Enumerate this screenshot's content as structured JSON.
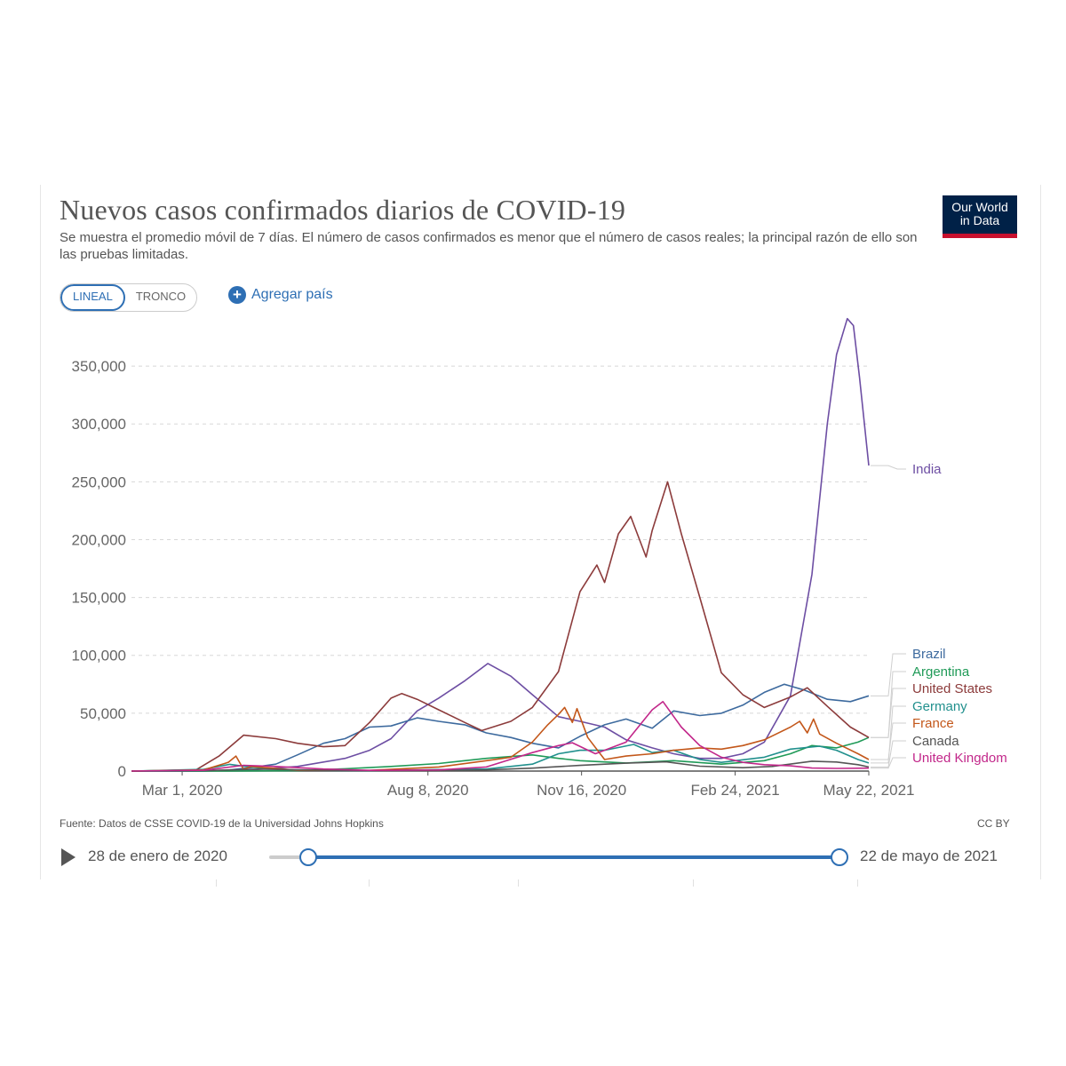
{
  "header": {
    "title": "Nuevos casos confirmados diarios de COVID-19",
    "subtitle": "Se muestra el promedio móvil de 7 días. El número de casos confirmados es menor que el número de casos reales; la principal razón de ello son las pruebas limitadas.",
    "logo_line1": "Our World",
    "logo_line2": "in Data"
  },
  "controls": {
    "scale_linear": "LINEAL",
    "scale_log": "TRONCO",
    "add_country": "Agregar país"
  },
  "footer": {
    "source": "Fuente: Datos de CSSE COVID-19 de la Universidad Johns Hopkins",
    "license": "CC BY"
  },
  "timeline": {
    "start_label": "28 de enero de 2020",
    "end_label": "22 de mayo de 2021"
  },
  "colors": {
    "India": "#6d4ea3",
    "Brazil": "#3d6a9e",
    "Argentina": "#1f9a57",
    "United States": "#8c3b3b",
    "Germany": "#21908d",
    "France": "#c3571a",
    "Canada": "#555555",
    "United Kingdom": "#c2278a",
    "accent": "#2e6fb4"
  },
  "chart_data": {
    "type": "line",
    "title": "Nuevos casos confirmados diarios de COVID-19",
    "xlabel": "",
    "ylabel": "",
    "x_ticks": [
      "Mar 1, 2020",
      "Aug 8, 2020",
      "Nov 16, 2020",
      "Feb 24, 2021",
      "May 22, 2021"
    ],
    "y_ticks": [
      "0",
      "50,000",
      "100,000",
      "150,000",
      "200,000",
      "250,000",
      "300,000",
      "350,000"
    ],
    "ylim": [
      0,
      390000
    ],
    "xlim": [
      "2020-01-28",
      "2021-05-22"
    ],
    "grid": true,
    "legend": "right, labels at line ends",
    "series": [
      {
        "name": "India",
        "points": [
          [
            "2020-01-28",
            0
          ],
          [
            "2020-03-15",
            100
          ],
          [
            "2020-04-15",
            1000
          ],
          [
            "2020-05-15",
            4000
          ],
          [
            "2020-06-15",
            11000
          ],
          [
            "2020-07-01",
            18000
          ],
          [
            "2020-07-15",
            28000
          ],
          [
            "2020-08-01",
            52000
          ],
          [
            "2020-08-15",
            63000
          ],
          [
            "2020-09-01",
            78000
          ],
          [
            "2020-09-16",
            93000
          ],
          [
            "2020-10-01",
            82000
          ],
          [
            "2020-10-15",
            66000
          ],
          [
            "2020-11-01",
            47000
          ],
          [
            "2020-11-15",
            43000
          ],
          [
            "2020-12-01",
            38000
          ],
          [
            "2020-12-15",
            27000
          ],
          [
            "2021-01-01",
            20000
          ],
          [
            "2021-01-15",
            15000
          ],
          [
            "2021-02-01",
            11000
          ],
          [
            "2021-02-15",
            11000
          ],
          [
            "2021-03-01",
            15000
          ],
          [
            "2021-03-15",
            25000
          ],
          [
            "2021-04-01",
            65000
          ],
          [
            "2021-04-15",
            170000
          ],
          [
            "2021-04-25",
            300000
          ],
          [
            "2021-05-01",
            360000
          ],
          [
            "2021-05-08",
            391000
          ],
          [
            "2021-05-12",
            385000
          ],
          [
            "2021-05-16",
            340000
          ],
          [
            "2021-05-22",
            264000
          ]
        ]
      },
      {
        "name": "Brazil",
        "points": [
          [
            "2020-01-28",
            0
          ],
          [
            "2020-03-15",
            0
          ],
          [
            "2020-04-01",
            1000
          ],
          [
            "2020-04-15",
            3000
          ],
          [
            "2020-05-01",
            6000
          ],
          [
            "2020-05-15",
            14000
          ],
          [
            "2020-06-01",
            24000
          ],
          [
            "2020-06-15",
            28000
          ],
          [
            "2020-07-01",
            38000
          ],
          [
            "2020-07-15",
            39000
          ],
          [
            "2020-08-01",
            46000
          ],
          [
            "2020-08-15",
            43000
          ],
          [
            "2020-09-01",
            40000
          ],
          [
            "2020-09-15",
            33000
          ],
          [
            "2020-10-01",
            29000
          ],
          [
            "2020-10-15",
            24000
          ],
          [
            "2020-11-01",
            20000
          ],
          [
            "2020-11-15",
            30000
          ],
          [
            "2020-12-01",
            40000
          ],
          [
            "2020-12-15",
            45000
          ],
          [
            "2021-01-01",
            37000
          ],
          [
            "2021-01-15",
            52000
          ],
          [
            "2021-02-01",
            48000
          ],
          [
            "2021-02-15",
            50000
          ],
          [
            "2021-03-01",
            57000
          ],
          [
            "2021-03-15",
            68000
          ],
          [
            "2021-03-28",
            75000
          ],
          [
            "2021-04-10",
            70000
          ],
          [
            "2021-04-25",
            62000
          ],
          [
            "2021-05-10",
            60000
          ],
          [
            "2021-05-22",
            65000
          ]
        ]
      },
      {
        "name": "Argentina",
        "points": [
          [
            "2020-01-28",
            0
          ],
          [
            "2020-04-01",
            100
          ],
          [
            "2020-05-15",
            300
          ],
          [
            "2020-06-15",
            2000
          ],
          [
            "2020-07-15",
            4000
          ],
          [
            "2020-08-15",
            6500
          ],
          [
            "2020-09-15",
            11000
          ],
          [
            "2020-10-15",
            14000
          ],
          [
            "2020-11-01",
            11000
          ],
          [
            "2020-11-15",
            9000
          ],
          [
            "2020-12-15",
            7000
          ],
          [
            "2021-01-15",
            9000
          ],
          [
            "2021-02-15",
            6000
          ],
          [
            "2021-03-15",
            9000
          ],
          [
            "2021-04-01",
            15000
          ],
          [
            "2021-04-15",
            22000
          ],
          [
            "2021-05-01",
            20000
          ],
          [
            "2021-05-15",
            25000
          ],
          [
            "2021-05-22",
            29000
          ]
        ]
      },
      {
        "name": "United States",
        "points": [
          [
            "2020-01-28",
            0
          ],
          [
            "2020-03-10",
            1000
          ],
          [
            "2020-03-25",
            13000
          ],
          [
            "2020-04-10",
            31000
          ],
          [
            "2020-05-01",
            28000
          ],
          [
            "2020-05-15",
            24000
          ],
          [
            "2020-06-01",
            21000
          ],
          [
            "2020-06-15",
            22000
          ],
          [
            "2020-07-01",
            42000
          ],
          [
            "2020-07-15",
            63000
          ],
          [
            "2020-07-22",
            67000
          ],
          [
            "2020-08-01",
            62000
          ],
          [
            "2020-08-15",
            53000
          ],
          [
            "2020-09-01",
            42000
          ],
          [
            "2020-09-12",
            35000
          ],
          [
            "2020-10-01",
            43000
          ],
          [
            "2020-10-15",
            55000
          ],
          [
            "2020-11-01",
            86000
          ],
          [
            "2020-11-15",
            155000
          ],
          [
            "2020-11-26",
            178000
          ],
          [
            "2020-12-01",
            163000
          ],
          [
            "2020-12-10",
            205000
          ],
          [
            "2020-12-18",
            220000
          ],
          [
            "2020-12-28",
            185000
          ],
          [
            "2021-01-01",
            208000
          ],
          [
            "2021-01-11",
            250000
          ],
          [
            "2021-01-20",
            205000
          ],
          [
            "2021-02-01",
            150000
          ],
          [
            "2021-02-15",
            85000
          ],
          [
            "2021-03-01",
            66000
          ],
          [
            "2021-03-15",
            55000
          ],
          [
            "2021-04-01",
            64000
          ],
          [
            "2021-04-12",
            72000
          ],
          [
            "2021-04-25",
            56000
          ],
          [
            "2021-05-10",
            38000
          ],
          [
            "2021-05-22",
            29000
          ]
        ]
      },
      {
        "name": "Germany",
        "points": [
          [
            "2020-01-28",
            0
          ],
          [
            "2020-03-15",
            1500
          ],
          [
            "2020-04-01",
            5800
          ],
          [
            "2020-04-15",
            3300
          ],
          [
            "2020-05-15",
            700
          ],
          [
            "2020-07-01",
            400
          ],
          [
            "2020-08-15",
            1300
          ],
          [
            "2020-09-15",
            1800
          ],
          [
            "2020-10-15",
            6000
          ],
          [
            "2020-11-01",
            15000
          ],
          [
            "2020-11-15",
            18000
          ],
          [
            "2020-12-01",
            18000
          ],
          [
            "2020-12-20",
            23000
          ],
          [
            "2021-01-01",
            16000
          ],
          [
            "2021-01-15",
            18000
          ],
          [
            "2021-02-01",
            10000
          ],
          [
            "2021-02-15",
            7500
          ],
          [
            "2021-03-15",
            12000
          ],
          [
            "2021-04-01",
            19000
          ],
          [
            "2021-04-20",
            21500
          ],
          [
            "2021-05-01",
            18000
          ],
          [
            "2021-05-15",
            10000
          ],
          [
            "2021-05-22",
            7000
          ]
        ]
      },
      {
        "name": "France",
        "points": [
          [
            "2020-01-28",
            0
          ],
          [
            "2020-03-15",
            1000
          ],
          [
            "2020-03-31",
            7500
          ],
          [
            "2020-04-05",
            13000
          ],
          [
            "2020-04-10",
            1500
          ],
          [
            "2020-04-15",
            4000
          ],
          [
            "2020-05-15",
            700
          ],
          [
            "2020-07-01",
            600
          ],
          [
            "2020-08-15",
            3500
          ],
          [
            "2020-09-15",
            9000
          ],
          [
            "2020-10-01",
            12000
          ],
          [
            "2020-10-15",
            25000
          ],
          [
            "2020-10-25",
            40000
          ],
          [
            "2020-11-01",
            49000
          ],
          [
            "2020-11-05",
            55000
          ],
          [
            "2020-11-10",
            42000
          ],
          [
            "2020-11-13",
            54000
          ],
          [
            "2020-11-20",
            29000
          ],
          [
            "2020-12-01",
            10000
          ],
          [
            "2020-12-15",
            13000
          ],
          [
            "2021-01-01",
            15000
          ],
          [
            "2021-01-15",
            18000
          ],
          [
            "2021-02-01",
            20000
          ],
          [
            "2021-02-15",
            19000
          ],
          [
            "2021-03-01",
            22000
          ],
          [
            "2021-03-15",
            27000
          ],
          [
            "2021-04-01",
            38000
          ],
          [
            "2021-04-07",
            43000
          ],
          [
            "2021-04-12",
            33000
          ],
          [
            "2021-04-16",
            45000
          ],
          [
            "2021-04-20",
            32000
          ],
          [
            "2021-05-01",
            24000
          ],
          [
            "2021-05-15",
            15000
          ],
          [
            "2021-05-22",
            10000
          ]
        ]
      },
      {
        "name": "Canada",
        "points": [
          [
            "2020-01-28",
            0
          ],
          [
            "2020-03-20",
            500
          ],
          [
            "2020-04-20",
            1700
          ],
          [
            "2020-06-01",
            700
          ],
          [
            "2020-07-15",
            350
          ],
          [
            "2020-08-15",
            400
          ],
          [
            "2020-09-15",
            1000
          ],
          [
            "2020-10-15",
            2500
          ],
          [
            "2020-11-15",
            4900
          ],
          [
            "2020-12-15",
            6800
          ],
          [
            "2021-01-10",
            8000
          ],
          [
            "2021-02-01",
            4200
          ],
          [
            "2021-03-01",
            2900
          ],
          [
            "2021-03-20",
            4000
          ],
          [
            "2021-04-15",
            8500
          ],
          [
            "2021-05-01",
            7800
          ],
          [
            "2021-05-15",
            5500
          ],
          [
            "2021-05-22",
            3500
          ]
        ]
      },
      {
        "name": "United Kingdom",
        "points": [
          [
            "2020-01-28",
            0
          ],
          [
            "2020-03-15",
            700
          ],
          [
            "2020-04-10",
            5000
          ],
          [
            "2020-05-01",
            4000
          ],
          [
            "2020-06-01",
            1800
          ],
          [
            "2020-07-01",
            650
          ],
          [
            "2020-08-15",
            1000
          ],
          [
            "2020-09-15",
            3500
          ],
          [
            "2020-10-15",
            16000
          ],
          [
            "2020-11-01",
            22000
          ],
          [
            "2020-11-10",
            24500
          ],
          [
            "2020-11-25",
            15000
          ],
          [
            "2020-12-15",
            25000
          ],
          [
            "2021-01-01",
            53000
          ],
          [
            "2021-01-08",
            60000
          ],
          [
            "2021-01-20",
            38000
          ],
          [
            "2021-02-01",
            22000
          ],
          [
            "2021-02-15",
            12000
          ],
          [
            "2021-03-01",
            7500
          ],
          [
            "2021-03-15",
            5500
          ],
          [
            "2021-04-01",
            4500
          ],
          [
            "2021-04-15",
            2600
          ],
          [
            "2021-05-01",
            2300
          ],
          [
            "2021-05-22",
            2500
          ]
        ]
      }
    ]
  }
}
